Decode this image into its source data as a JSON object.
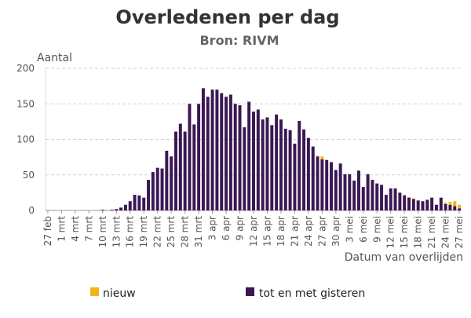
{
  "chart_data": {
    "type": "bar",
    "title": "Overledenen per dag",
    "subtitle": "Bron: RIVM",
    "ylabel": "Aantal",
    "xlabel": "Datum van overlijden",
    "ylim": [
      0,
      200
    ],
    "yticks": [
      0,
      50,
      100,
      150,
      200
    ],
    "grid": true,
    "legend_position": "bottom",
    "colors": {
      "nieuw": "#f5b31b",
      "tot_en_met_gisteren": "#3b1754",
      "grid": "#c9d3df",
      "axis": "#999999"
    },
    "categories": [
      "27 feb",
      "28 feb",
      "29 feb",
      "1 mrt",
      "2 mrt",
      "3 mrt",
      "4 mrt",
      "5 mrt",
      "6 mrt",
      "7 mrt",
      "8 mrt",
      "9 mrt",
      "10 mrt",
      "11 mrt",
      "12 mrt",
      "13 mrt",
      "14 mrt",
      "15 mrt",
      "16 mrt",
      "17 mrt",
      "18 mrt",
      "19 mrt",
      "20 mrt",
      "21 mrt",
      "22 mrt",
      "23 mrt",
      "24 mrt",
      "25 mrt",
      "26 mrt",
      "27 mrt",
      "28 mrt",
      "29 mrt",
      "30 mrt",
      "31 mrt",
      "1 apr",
      "2 apr",
      "3 apr",
      "4 apr",
      "5 apr",
      "6 apr",
      "7 apr",
      "8 apr",
      "9 apr",
      "10 apr",
      "11 apr",
      "12 apr",
      "13 apr",
      "14 apr",
      "15 apr",
      "16 apr",
      "17 apr",
      "18 apr",
      "19 apr",
      "20 apr",
      "21 apr",
      "22 apr",
      "23 apr",
      "24 apr",
      "25 apr",
      "26 apr",
      "27 apr",
      "28 apr",
      "29 apr",
      "30 apr",
      "1 mei",
      "2 mei",
      "3 mei",
      "4 mei",
      "5 mei",
      "6 mei",
      "7 mei",
      "8 mei",
      "9 mei",
      "10 mei",
      "11 mei",
      "12 mei",
      "13 mei",
      "14 mei",
      "15 mei",
      "16 mei",
      "17 mei",
      "18 mei",
      "19 mei",
      "20 mei",
      "21 mei",
      "22 mei",
      "23 mei",
      "24 mei",
      "25 mei",
      "26 mei",
      "27 mei"
    ],
    "tick_labels": [
      "27 feb",
      "1 mrt",
      "4 mrt",
      "7 mrt",
      "10 mrt",
      "13 mrt",
      "16 mrt",
      "19 mrt",
      "22 mrt",
      "25 mrt",
      "28 mrt",
      "31 mrt",
      "3 apr",
      "6 apr",
      "9 apr",
      "12 apr",
      "15 apr",
      "18 apr",
      "21 apr",
      "24 apr",
      "27 apr",
      "30 apr",
      "3 mei",
      "6 mei",
      "9 mei",
      "12 mei",
      "15 mei",
      "18 mei",
      "21 mei",
      "24 mei",
      "27 mei"
    ],
    "series": [
      {
        "name": "tot en met gisteren",
        "values": [
          0,
          0,
          0,
          0,
          0,
          0,
          0,
          0,
          0,
          0,
          0,
          0,
          1,
          0,
          1,
          2,
          4,
          8,
          13,
          22,
          21,
          18,
          43,
          54,
          60,
          59,
          84,
          76,
          111,
          122,
          111,
          150,
          121,
          150,
          172,
          160,
          170,
          170,
          165,
          160,
          163,
          150,
          148,
          117,
          153,
          139,
          142,
          128,
          131,
          120,
          135,
          128,
          115,
          113,
          94,
          126,
          114,
          102,
          90,
          76,
          72,
          71,
          68,
          57,
          66,
          51,
          51,
          42,
          56,
          33,
          51,
          43,
          38,
          36,
          22,
          31,
          31,
          25,
          21,
          18,
          16,
          14,
          13,
          15,
          18,
          8,
          18,
          9,
          8,
          6,
          3
        ],
        "color": "#3b1754"
      },
      {
        "name": "nieuw",
        "values": [
          0,
          0,
          0,
          0,
          0,
          0,
          0,
          0,
          0,
          0,
          0,
          0,
          0,
          0,
          0,
          0,
          0,
          0,
          0,
          0,
          0,
          0,
          0,
          0,
          0,
          0,
          0,
          0,
          0,
          0,
          0,
          0,
          0,
          0,
          0,
          0,
          0,
          0,
          0,
          0,
          0,
          0,
          0,
          0,
          0,
          0,
          0,
          0,
          0,
          0,
          0,
          0,
          0,
          0,
          0,
          0,
          0,
          0,
          0,
          1,
          4,
          0,
          0,
          0,
          0,
          0,
          0,
          0,
          0,
          0,
          0,
          0,
          0,
          0,
          0,
          0,
          0,
          0,
          1,
          1,
          1,
          0,
          0,
          0,
          0,
          0,
          0,
          2,
          4,
          7,
          5
        ],
        "color": "#f5b31b"
      }
    ]
  }
}
